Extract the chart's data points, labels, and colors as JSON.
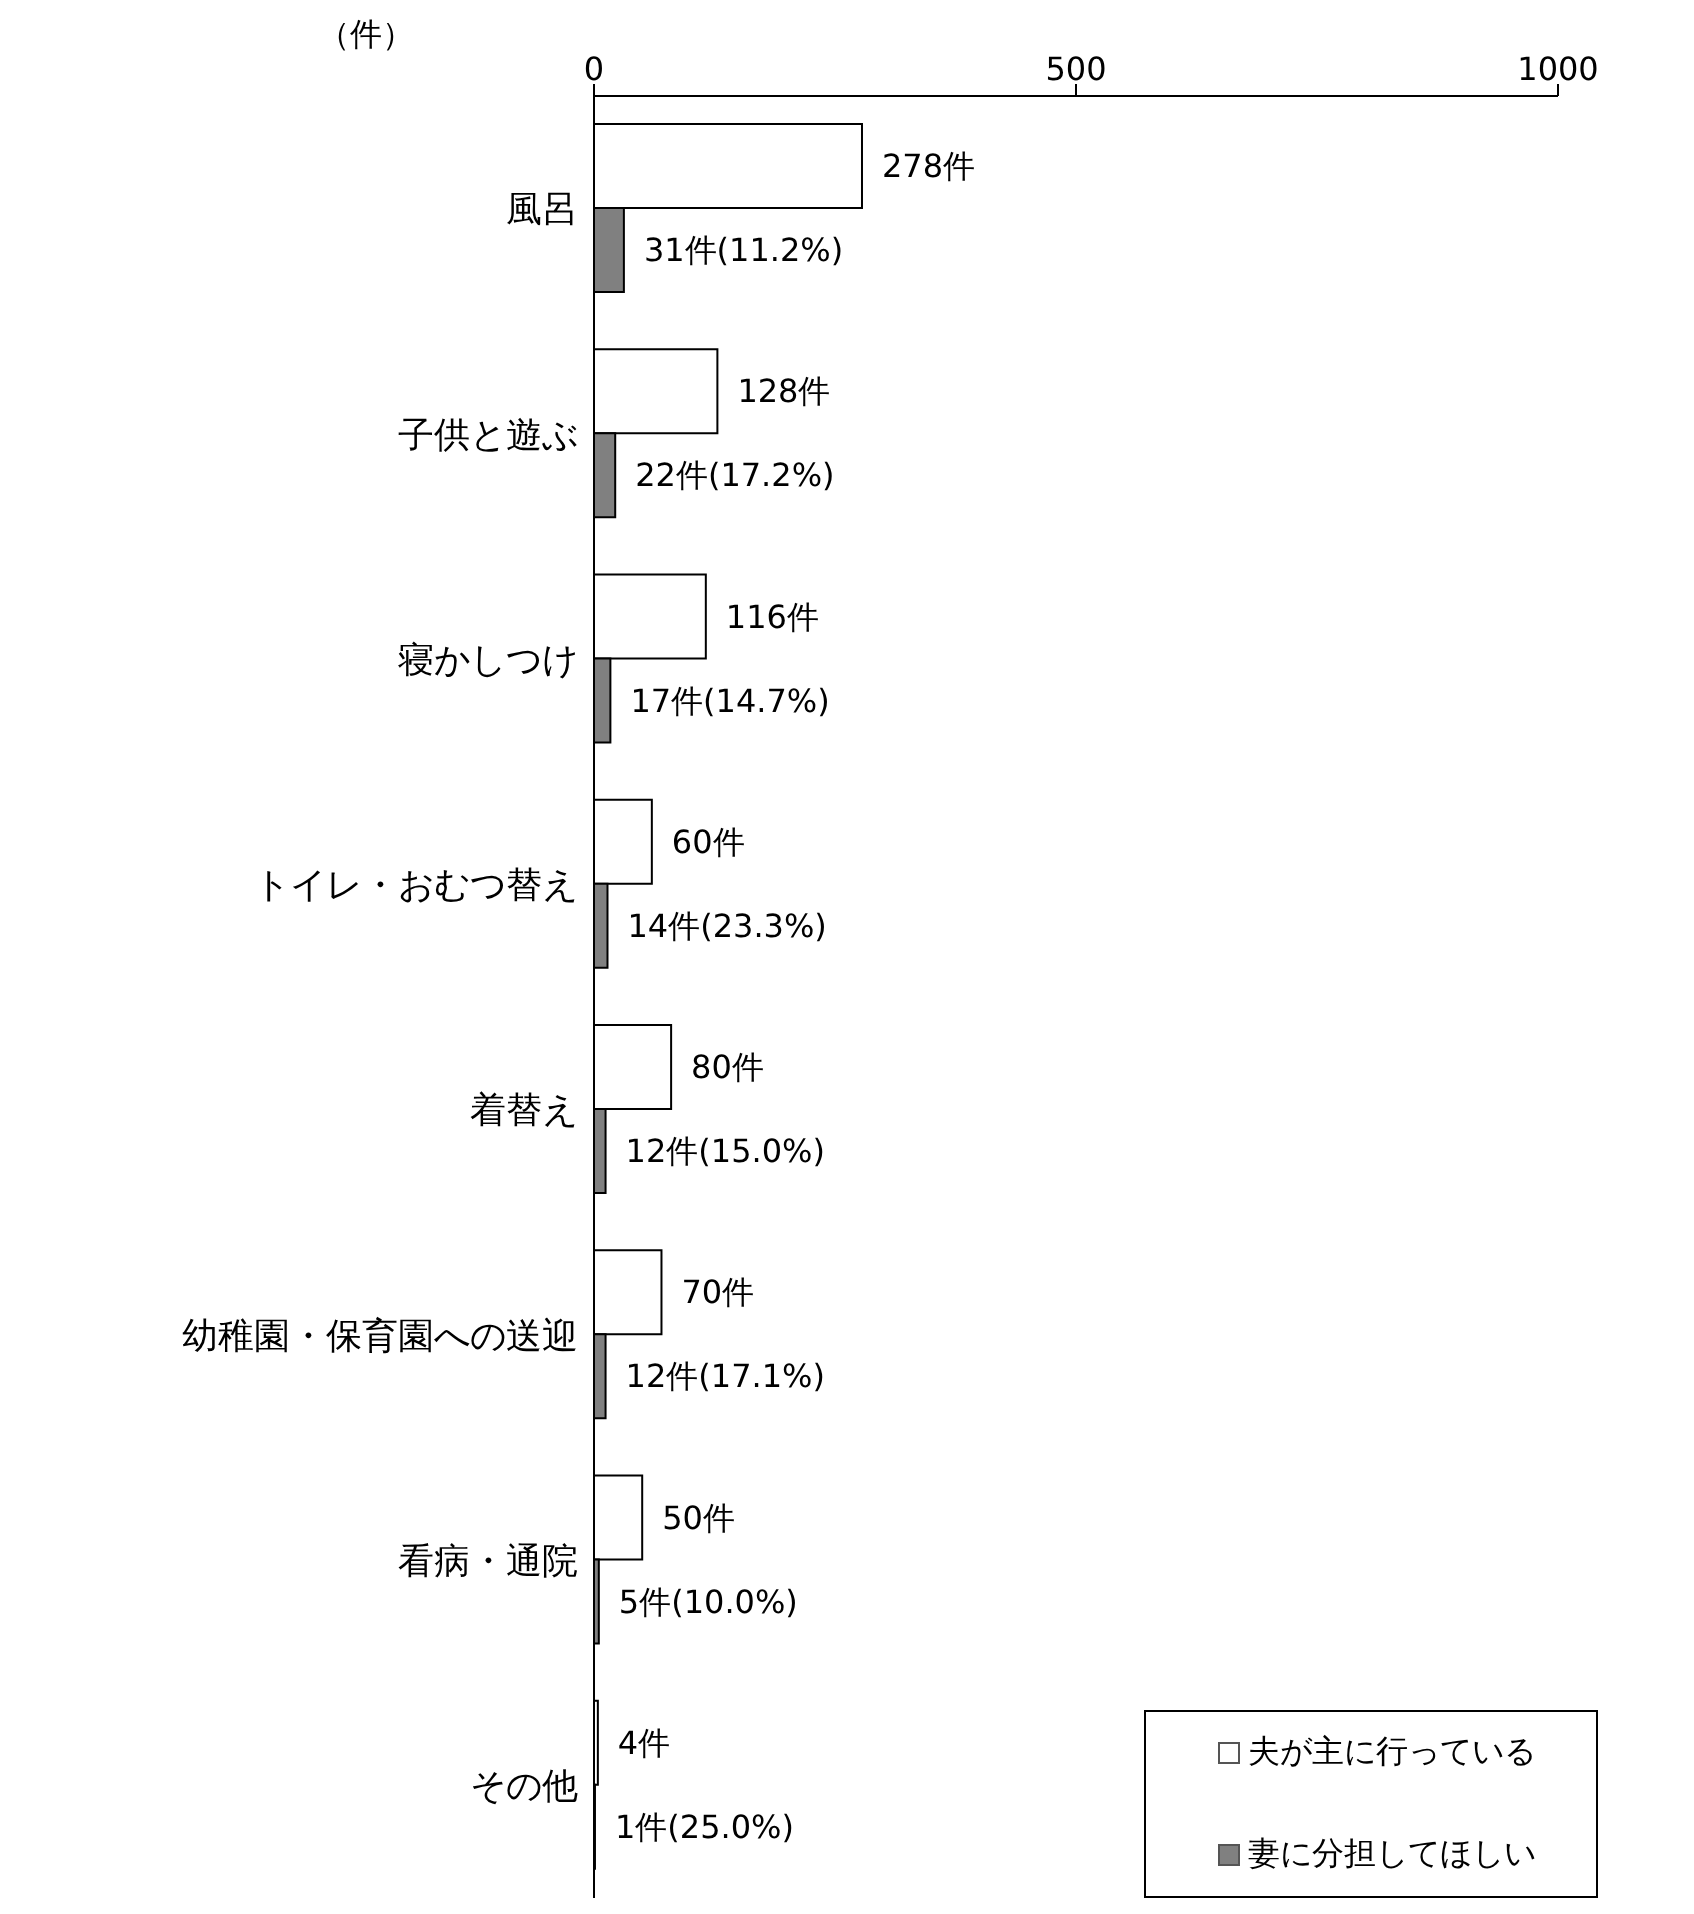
{
  "chart_data": {
    "type": "bar",
    "orientation": "horizontal",
    "xlabel": "（件）",
    "categories": [
      "風呂",
      "子供と遊ぶ",
      "寝かしつけ",
      "トイレ・おむつ替え",
      "着替え",
      "幼稚園・保育園への送迎",
      "看病・通院",
      "その他"
    ],
    "series": [
      {
        "name": "夫が主に行っている",
        "color": "#ffffff",
        "values": [
          278,
          128,
          116,
          60,
          80,
          70,
          50,
          4
        ],
        "value_labels": [
          "278件",
          "128件",
          "116件",
          "60件",
          "80件",
          "70件",
          "50件",
          "4件"
        ]
      },
      {
        "name": "妻に分担してほしい",
        "color": "#808080",
        "values": [
          31,
          22,
          17,
          14,
          12,
          12,
          5,
          1
        ],
        "value_labels": [
          "31件(11.2%)",
          "22件(17.2%)",
          "17件(14.7%)",
          "14件(23.3%)",
          "12件(15.0%)",
          "12件(17.1%)",
          "5件(10.0%)",
          "1件(25.0%)"
        ]
      }
    ],
    "xlim": [
      0,
      1000
    ],
    "xticks": [
      0,
      500,
      1000
    ],
    "grid": false,
    "legend": "bottom right"
  }
}
